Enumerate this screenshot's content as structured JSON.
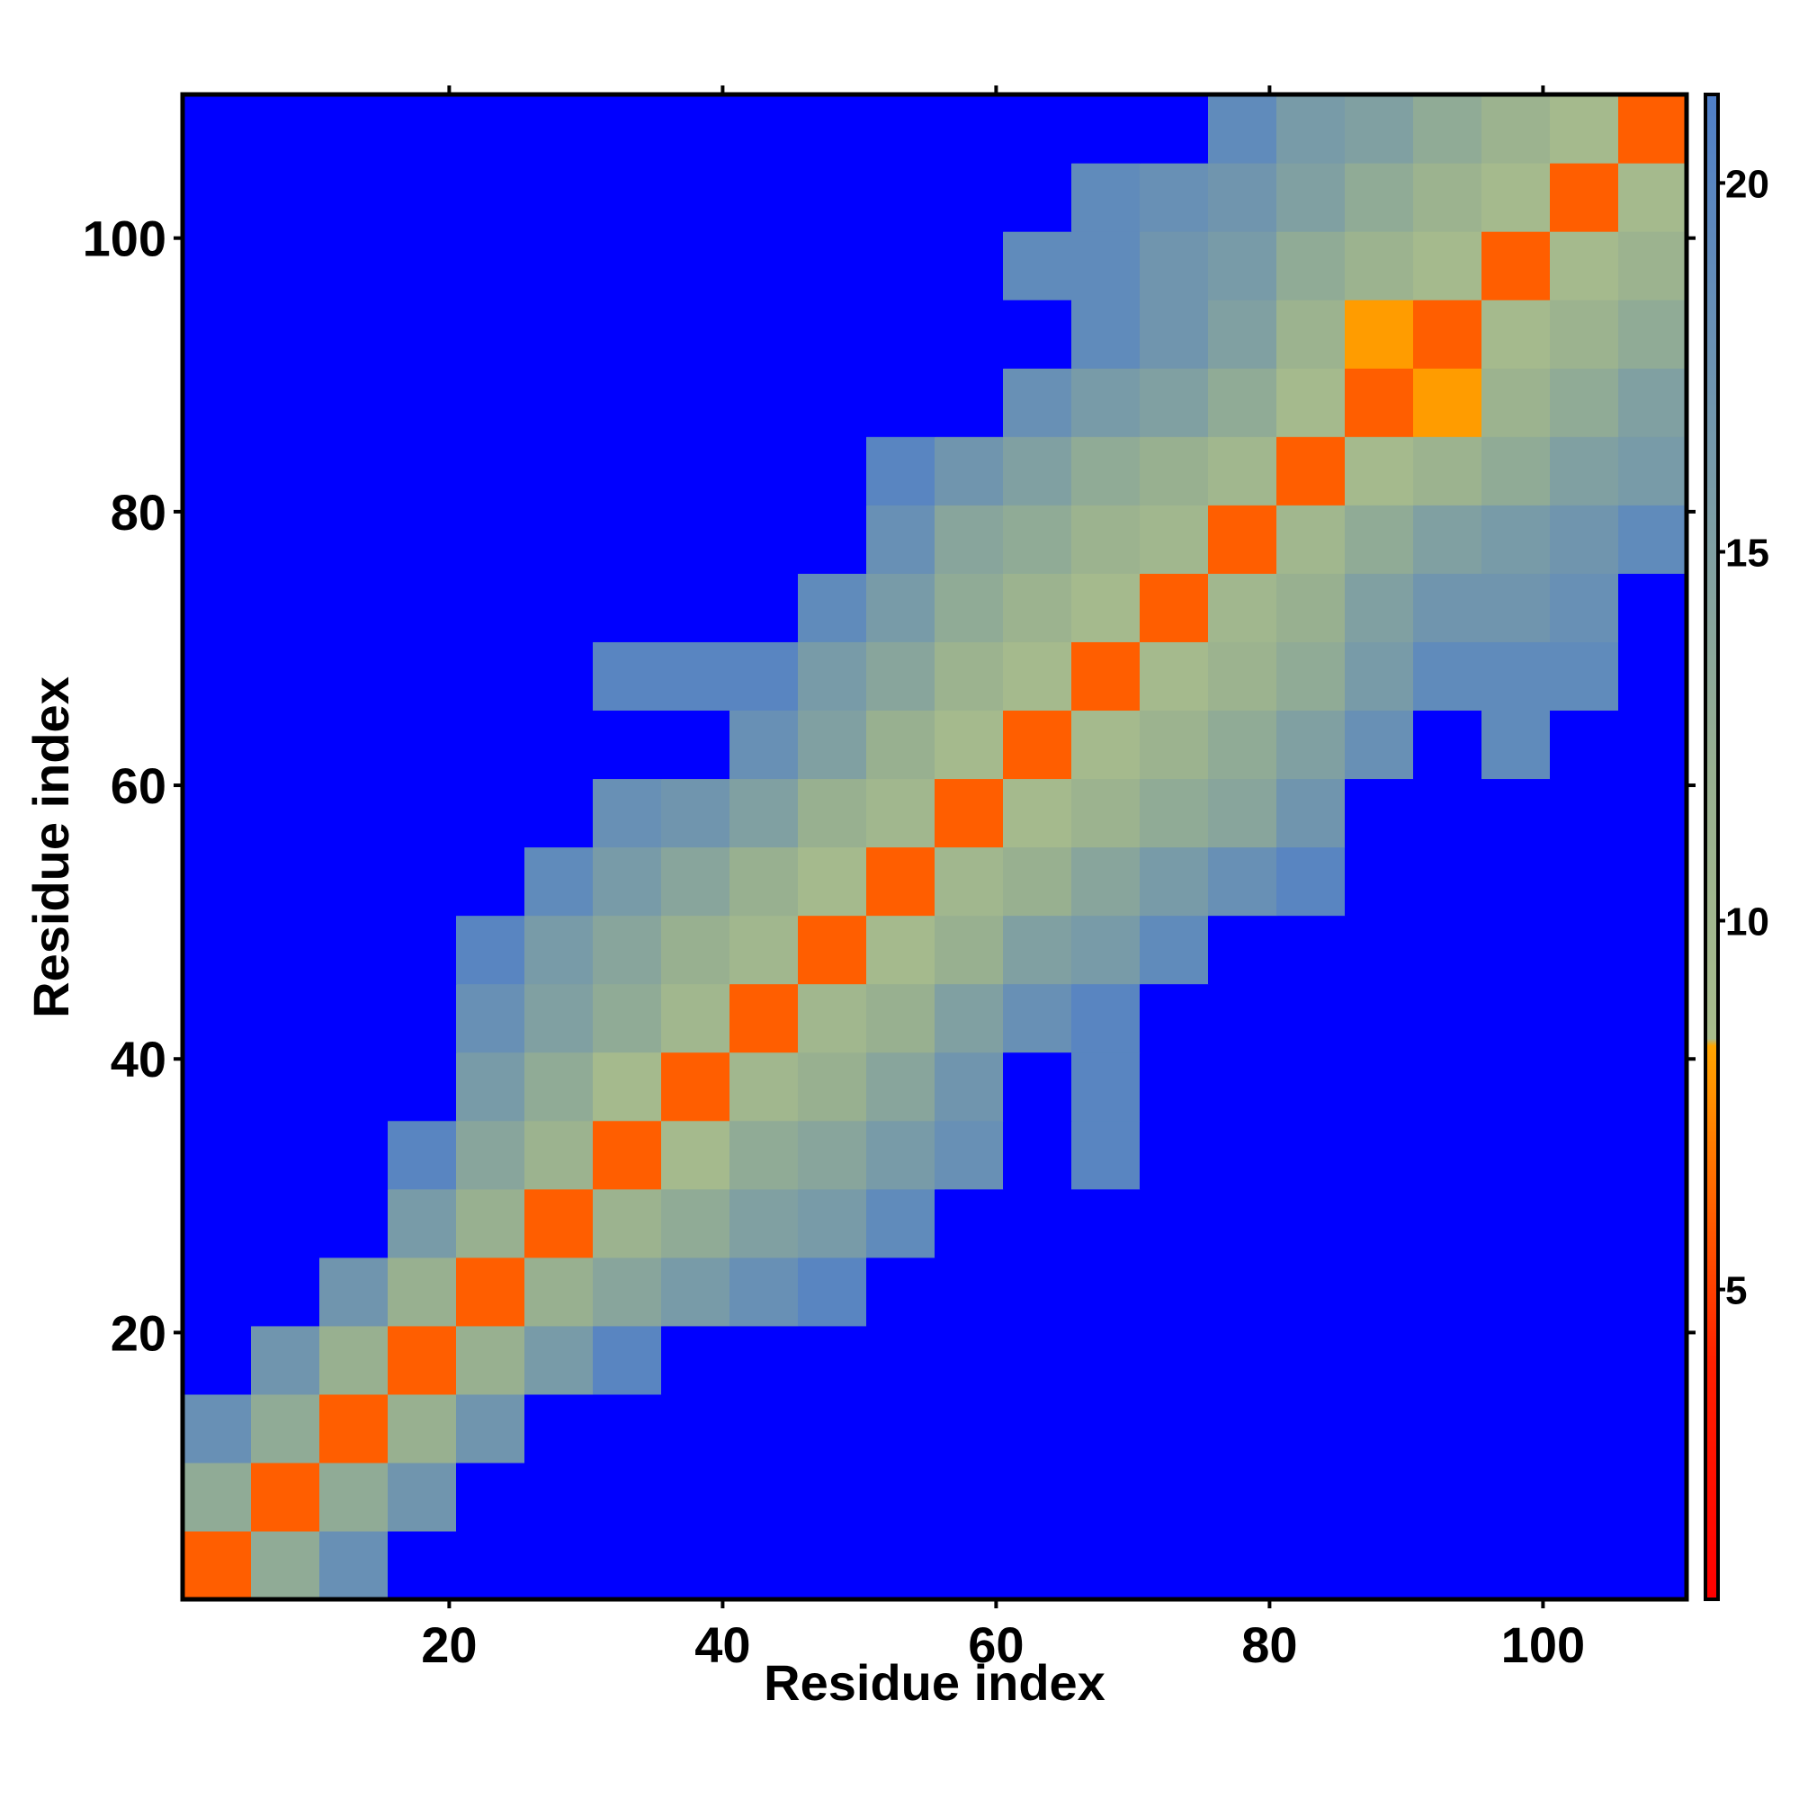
{
  "chart_data": {
    "type": "heatmap",
    "xlabel": "Residue index",
    "ylabel": "Residue index",
    "x": [
      3,
      8,
      13,
      18,
      23,
      28,
      33,
      38,
      43,
      48,
      53,
      58,
      63,
      68,
      73,
      78,
      83,
      88,
      93,
      98,
      103,
      108
    ],
    "y": [
      3,
      8,
      13,
      18,
      23,
      28,
      33,
      38,
      43,
      48,
      53,
      58,
      63,
      68,
      73,
      78,
      83,
      88,
      93,
      98,
      103,
      108
    ],
    "xlim": [
      0.5,
      110.5
    ],
    "ylim": [
      0.5,
      110.5
    ],
    "xticks": [
      20,
      40,
      60,
      80,
      100
    ],
    "yticks": [
      20,
      40,
      60,
      80,
      100
    ],
    "z": [
      [
        6,
        13,
        18,
        22,
        22,
        22,
        22,
        22,
        22,
        22,
        22,
        22,
        22,
        22,
        22,
        22,
        22,
        22,
        22,
        22,
        22,
        22
      ],
      [
        13,
        6,
        13,
        17,
        22,
        22,
        22,
        22,
        22,
        22,
        22,
        22,
        22,
        22,
        22,
        22,
        22,
        22,
        22,
        22,
        22,
        22
      ],
      [
        18,
        13,
        6,
        12,
        17,
        22,
        22,
        22,
        22,
        22,
        22,
        22,
        22,
        22,
        22,
        22,
        22,
        22,
        22,
        22,
        22,
        22
      ],
      [
        22,
        17,
        12,
        6,
        12,
        16,
        20,
        22,
        22,
        22,
        22,
        22,
        22,
        22,
        22,
        22,
        22,
        22,
        22,
        22,
        22,
        22
      ],
      [
        22,
        22,
        17,
        12,
        6,
        12,
        14,
        16,
        18,
        20,
        22,
        22,
        22,
        22,
        22,
        22,
        22,
        22,
        22,
        22,
        22,
        22
      ],
      [
        22,
        22,
        22,
        16,
        12,
        6,
        11,
        13,
        15,
        16,
        19,
        22,
        22,
        22,
        22,
        22,
        22,
        22,
        22,
        22,
        22,
        22
      ],
      [
        22,
        22,
        22,
        20,
        14,
        11,
        6,
        9,
        13,
        14,
        16,
        18,
        22,
        20,
        22,
        22,
        22,
        22,
        22,
        22,
        22,
        22
      ],
      [
        22,
        22,
        22,
        22,
        16,
        13,
        9,
        6,
        10,
        12,
        14,
        17,
        22,
        20,
        22,
        22,
        22,
        22,
        22,
        22,
        22,
        22
      ],
      [
        22,
        22,
        22,
        22,
        18,
        15,
        13,
        10,
        6,
        10,
        12,
        15,
        18,
        20,
        22,
        22,
        22,
        22,
        22,
        22,
        22,
        22
      ],
      [
        22,
        22,
        22,
        22,
        20,
        16,
        14,
        12,
        10,
        6,
        9,
        12,
        15,
        16,
        19,
        22,
        22,
        22,
        22,
        22,
        22,
        22
      ],
      [
        22,
        22,
        22,
        22,
        22,
        19,
        16,
        14,
        12,
        9,
        6,
        10,
        12,
        14,
        16,
        18,
        20,
        22,
        22,
        22,
        22,
        22
      ],
      [
        22,
        22,
        22,
        22,
        22,
        22,
        18,
        17,
        15,
        12,
        10,
        6,
        9,
        11,
        13,
        14,
        17,
        22,
        22,
        22,
        22,
        22
      ],
      [
        22,
        22,
        22,
        22,
        22,
        22,
        22,
        22,
        18,
        15,
        12,
        9,
        6,
        9,
        11,
        13,
        15,
        18,
        22,
        19,
        22,
        22
      ],
      [
        22,
        22,
        22,
        22,
        22,
        22,
        20,
        20,
        20,
        16,
        14,
        11,
        9,
        6,
        9,
        11,
        13,
        16,
        19,
        19,
        19,
        22
      ],
      [
        22,
        22,
        22,
        22,
        22,
        22,
        22,
        22,
        22,
        19,
        16,
        13,
        11,
        9,
        6,
        10,
        12,
        15,
        17,
        17,
        18,
        22
      ],
      [
        22,
        22,
        22,
        22,
        22,
        22,
        22,
        22,
        22,
        22,
        18,
        14,
        13,
        11,
        10,
        6,
        10,
        13,
        15,
        16,
        17,
        19
      ],
      [
        22,
        22,
        22,
        22,
        22,
        22,
        22,
        22,
        22,
        22,
        20,
        17,
        15,
        13,
        12,
        10,
        6,
        9,
        11,
        13,
        15,
        16
      ],
      [
        22,
        22,
        22,
        22,
        22,
        22,
        22,
        22,
        22,
        22,
        22,
        22,
        18,
        16,
        15,
        13,
        9,
        6,
        8,
        11,
        13,
        15
      ],
      [
        22,
        22,
        22,
        22,
        22,
        22,
        22,
        22,
        22,
        22,
        22,
        22,
        22,
        19,
        17,
        15,
        11,
        8,
        6,
        9,
        11,
        13
      ],
      [
        22,
        22,
        22,
        22,
        22,
        22,
        22,
        22,
        22,
        22,
        22,
        22,
        19,
        19,
        17,
        16,
        13,
        11,
        9,
        6,
        9,
        11
      ],
      [
        22,
        22,
        22,
        22,
        22,
        22,
        22,
        22,
        22,
        22,
        22,
        22,
        22,
        19,
        18,
        17,
        15,
        13,
        11,
        9,
        6,
        9
      ],
      [
        22,
        22,
        22,
        22,
        22,
        22,
        22,
        22,
        22,
        22,
        22,
        22,
        22,
        22,
        22,
        19,
        16,
        15,
        13,
        11,
        9,
        6
      ]
    ],
    "colorbar": {
      "clim": [
        0.8,
        21.2
      ],
      "ticks": [
        5,
        10,
        15,
        20
      ],
      "colorscale": [
        [
          0.8,
          "#ff0000"
        ],
        [
          4,
          "#ff2000"
        ],
        [
          8.3,
          "#ffa500"
        ],
        [
          8.4,
          "#a8bc8c"
        ],
        [
          12,
          "#98b090"
        ],
        [
          21.2,
          "#4f7fc8"
        ]
      ],
      "over_color": "#0000ff"
    }
  }
}
